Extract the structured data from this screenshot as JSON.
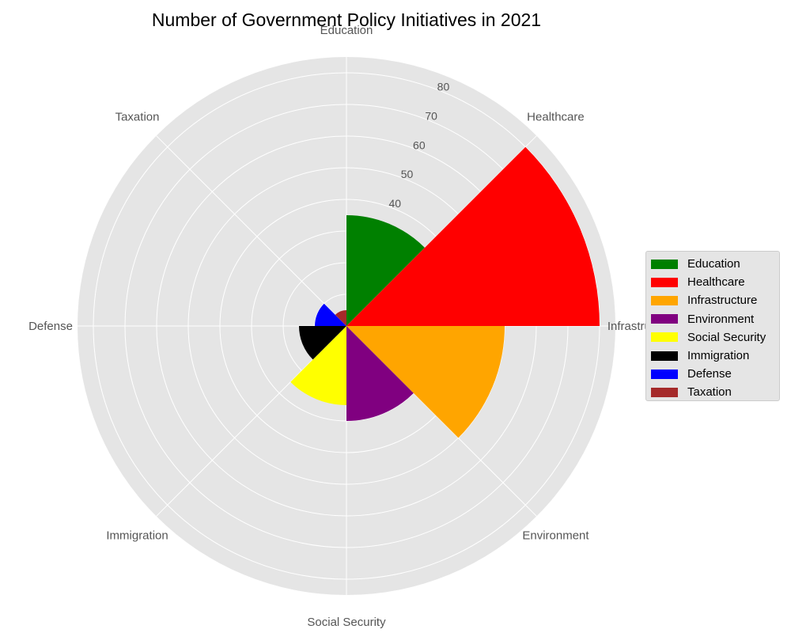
{
  "chart_data": {
    "type": "polar-bar",
    "title": "Number of Government Policy Initiatives in 2021",
    "categories": [
      "Education",
      "Healthcare",
      "Infrastructure",
      "Environment",
      "Social Security",
      "Immigration",
      "Defense",
      "Taxation"
    ],
    "values": [
      35,
      80,
      50,
      30,
      25,
      15,
      10,
      5
    ],
    "colors": [
      "#008000",
      "#ff0000",
      "#ffa500",
      "#800080",
      "#ffff00",
      "#000000",
      "#0000ff",
      "#a52a2a"
    ],
    "radial_ticks": [
      "10",
      "20",
      "30",
      "40",
      "50",
      "60",
      "70",
      "80"
    ],
    "rmax": 85,
    "grid": true,
    "legend_position": "right"
  }
}
